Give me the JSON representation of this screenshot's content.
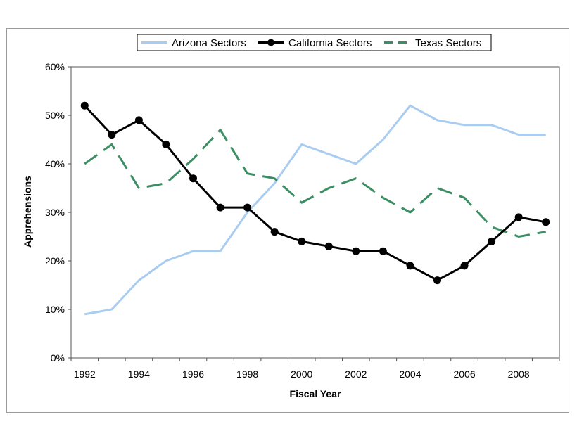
{
  "chart_data": {
    "type": "line",
    "title": "",
    "xlabel": "Fiscal Year",
    "ylabel": "Apprehensions",
    "x": [
      1992,
      1993,
      1994,
      1995,
      1996,
      1997,
      1998,
      1999,
      2000,
      2001,
      2002,
      2003,
      2004,
      2005,
      2006,
      2007,
      2008,
      2009
    ],
    "x_tick_labels": [
      "1992",
      "1994",
      "1996",
      "1998",
      "2000",
      "2002",
      "2004",
      "2006",
      "2008"
    ],
    "y_tick_labels": [
      "0%",
      "10%",
      "20%",
      "30%",
      "40%",
      "50%",
      "60%"
    ],
    "ylim": [
      0,
      60
    ],
    "xlim": [
      1991.5,
      2009.5
    ],
    "grid": false,
    "legend_position": "top",
    "series": [
      {
        "name": "Arizona Sectors",
        "color": "#a9cdf0",
        "style": "solid",
        "values": [
          9,
          10,
          16,
          20,
          22,
          22,
          30,
          36,
          44,
          42,
          40,
          45,
          52,
          49,
          48,
          48,
          46,
          46
        ]
      },
      {
        "name": "California Sectors",
        "color": "#000000",
        "style": "solid-markers",
        "values": [
          52,
          46,
          49,
          44,
          37,
          31,
          31,
          26,
          24,
          23,
          22,
          22,
          19,
          16,
          19,
          24,
          29,
          28
        ]
      },
      {
        "name": "Texas Sectors",
        "color": "#3c8f64",
        "style": "dashed",
        "values": [
          40,
          44,
          35,
          36,
          41,
          47,
          38,
          37,
          32,
          35,
          37,
          33,
          30,
          35,
          33,
          27,
          25,
          26
        ]
      }
    ]
  }
}
